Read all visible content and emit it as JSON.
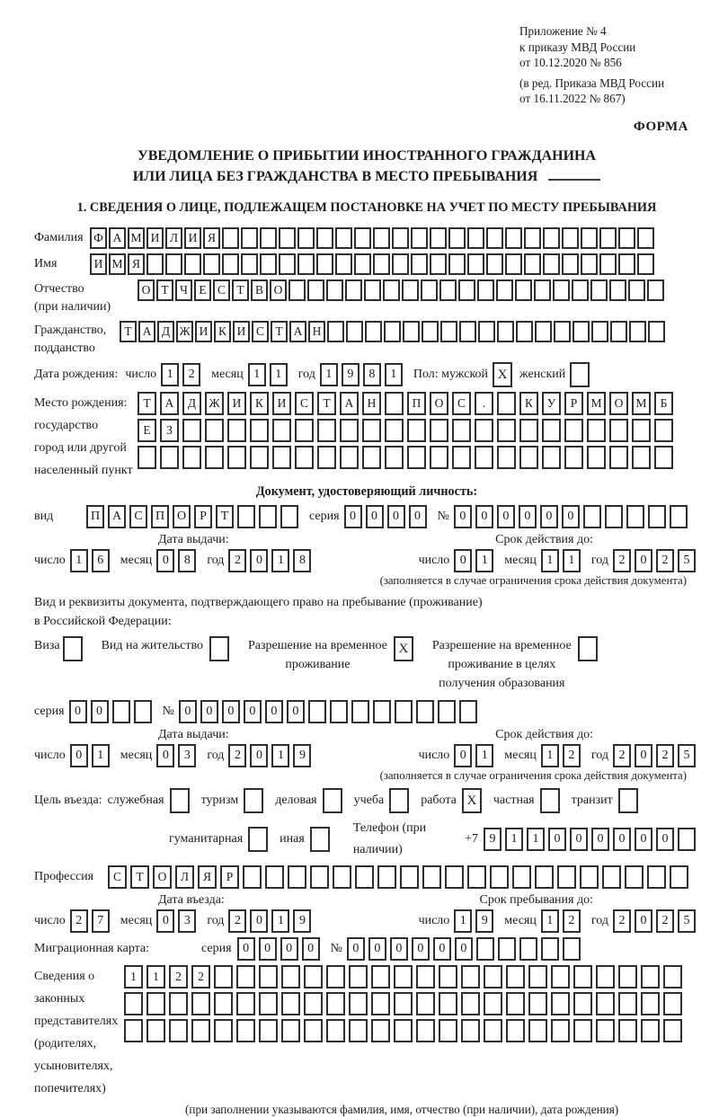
{
  "doc_ref": {
    "lines": [
      "Приложение № 4",
      "к приказу МВД России",
      "от 10.12.2020 № 856"
    ],
    "amendment_lines": [
      "(в ред. Приказа МВД России",
      "от 16.11.2022 № 867)"
    ]
  },
  "forma_label": "ФОРМА",
  "title": {
    "line1": "УВЕДОМЛЕНИЕ О ПРИБЫТИИ ИНОСТРАННОГО ГРАЖДАНИНА",
    "line2": "ИЛИ ЛИЦА БЕЗ ГРАЖДАНСТВА В МЕСТО ПРЕБЫВАНИЯ"
  },
  "section1_title": "1. СВЕДЕНИЯ О ЛИЦЕ, ПОДЛЕЖАЩЕМ ПОСТАНОВКЕ НА УЧЕТ ПО МЕСТУ ПРЕБЫВАНИЯ",
  "labels": {
    "day": "число",
    "month": "месяц",
    "year": "год",
    "series": "серия",
    "number": "№",
    "issue_date": "Дата выдачи:",
    "valid_until": "Срок действия до:",
    "restriction_note": "(заполняется в случае ограничения срока действия документа)"
  },
  "person": {
    "surname": {
      "label": "Фамилия",
      "text": "ФАМИЛИЯ",
      "count": 30
    },
    "name": {
      "label": "Имя",
      "text": "ИМЯ",
      "count": 30
    },
    "patronymic": {
      "label1": "Отчество",
      "label2": "(при наличии)",
      "text": "ОТЧЕСТВО",
      "count": 28
    },
    "citizenship": {
      "label1": "Гражданство,",
      "label2": "подданство",
      "text": "ТАДЖИКИСТАН",
      "count": 29
    },
    "birth_date": {
      "label": "Дата рождения:",
      "day": {
        "text": "12",
        "count": 2
      },
      "month": {
        "text": "11",
        "count": 2
      },
      "year": {
        "text": "1981",
        "count": 4
      }
    },
    "sex": {
      "label_male": "Пол: мужской",
      "male": {
        "text": "X",
        "count": 1
      },
      "label_female": "женский",
      "female": {
        "text": "",
        "count": 1
      }
    },
    "birth_place": {
      "label_lines": [
        "Место рождения:",
        "государство",
        "город или другой",
        "населенный пункт"
      ],
      "row1": {
        "text": "ТАДЖИКИСТАН ПОС. КУРМОМБ",
        "count": 24
      },
      "row2": {
        "text": "ЕЗ",
        "count": 24
      },
      "row3": {
        "text": "",
        "count": 24
      }
    }
  },
  "identity_doc": {
    "header": "Документ, удостоверяющий личность:",
    "type": {
      "label": "вид",
      "text": "ПАСПОРТ",
      "count": 10
    },
    "series": {
      "text": "0000",
      "count": 4
    },
    "number": {
      "text": "000000",
      "count": 11
    },
    "issue": {
      "day": {
        "text": "16",
        "count": 2
      },
      "month": {
        "text": "08",
        "count": 2
      },
      "year": {
        "text": "2018",
        "count": 4
      }
    },
    "expiry": {
      "day": {
        "text": "01",
        "count": 2
      },
      "month": {
        "text": "11",
        "count": 2
      },
      "year": {
        "text": "2025",
        "count": 4
      }
    }
  },
  "residence_doc": {
    "intro_line1": "Вид и реквизиты документа, подтверждающего право на пребывание (проживание)",
    "intro_line2": "в Российской Федерации:",
    "options": [
      {
        "lines": [
          "Виза"
        ],
        "box": {
          "text": "",
          "count": 1
        }
      },
      {
        "lines": [
          "Вид на жительство"
        ],
        "box": {
          "text": "",
          "count": 1
        }
      },
      {
        "lines": [
          "Разрешение на временное",
          "проживание"
        ],
        "box": {
          "text": "X",
          "count": 1
        }
      },
      {
        "lines": [
          "Разрешение на временное",
          "проживание в целях",
          "получения образования"
        ],
        "box": {
          "text": "",
          "count": 1
        }
      }
    ],
    "series": {
      "text": "00",
      "count": 4
    },
    "number": {
      "text": "000000",
      "count": 14
    },
    "issue": {
      "day": {
        "text": "01",
        "count": 2
      },
      "month": {
        "text": "03",
        "count": 2
      },
      "year": {
        "text": "2019",
        "count": 4
      }
    },
    "expiry": {
      "day": {
        "text": "01",
        "count": 2
      },
      "month": {
        "text": "12",
        "count": 2
      },
      "year": {
        "text": "2025",
        "count": 4
      }
    }
  },
  "visit": {
    "purpose_label": "Цель въезда:",
    "purpose_options_row1": [
      {
        "label": "служебная",
        "box": {
          "text": "",
          "count": 1
        }
      },
      {
        "label": "туризм",
        "box": {
          "text": "",
          "count": 1
        }
      },
      {
        "label": "деловая",
        "box": {
          "text": "",
          "count": 1
        }
      },
      {
        "label": "учеба",
        "box": {
          "text": "",
          "count": 1
        }
      },
      {
        "label": "работа",
        "box": {
          "text": "X",
          "count": 1
        }
      },
      {
        "label": "частная",
        "box": {
          "text": "",
          "count": 1
        }
      },
      {
        "label": "транзит",
        "box": {
          "text": "",
          "count": 1
        }
      }
    ],
    "purpose_options_row2": [
      {
        "label": "гуманитарная",
        "box": {
          "text": "",
          "count": 1
        }
      },
      {
        "label": "иная",
        "box": {
          "text": "",
          "count": 1
        }
      }
    ],
    "phone_label": "Телефон (при наличии)",
    "phone_prefix": "+7",
    "phone": {
      "text": "911000000",
      "count": 10
    },
    "profession": {
      "label": "Профессия",
      "text": "СТОЛЯР",
      "count": 26
    },
    "entry_date_header": "Дата въезда:",
    "stay_until_header": "Срок пребывания до:",
    "entry": {
      "day": {
        "text": "27",
        "count": 2
      },
      "month": {
        "text": "03",
        "count": 2
      },
      "year": {
        "text": "2019",
        "count": 4
      }
    },
    "stay_until": {
      "day": {
        "text": "19",
        "count": 2
      },
      "month": {
        "text": "12",
        "count": 2
      },
      "year": {
        "text": "2025",
        "count": 4
      }
    }
  },
  "migration_card": {
    "label": "Миграционная карта:",
    "series": {
      "text": "0000",
      "count": 4
    },
    "number": {
      "text": "000000",
      "count": 11
    }
  },
  "representatives": {
    "label_lines": [
      "Сведения о",
      "законных",
      "представителях",
      "(родителях,",
      "усыновителях,",
      "попечителях)"
    ],
    "row1": {
      "text": "1122",
      "count": 25
    },
    "row2": {
      "text": "",
      "count": 25
    },
    "row3": {
      "text": "",
      "count": 25
    },
    "note": "(при заполнении указываются фамилия, имя, отчество (при наличии), дата рождения)"
  }
}
